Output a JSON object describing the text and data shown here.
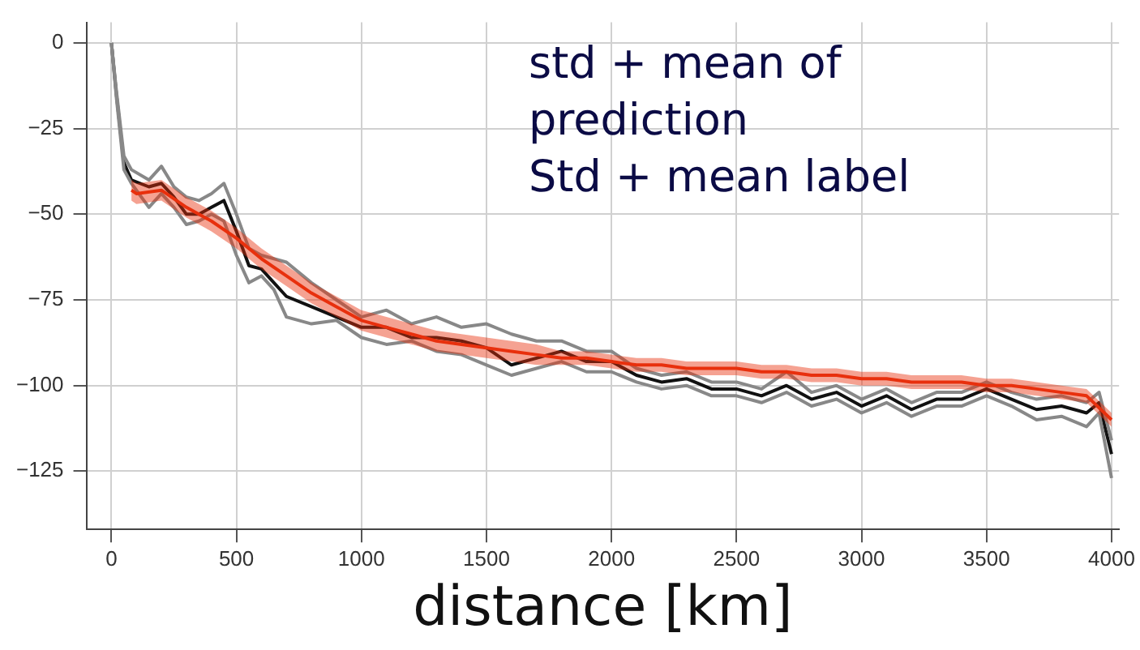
{
  "chart_data": {
    "type": "line",
    "xlabel": "distance [km]",
    "annotations": [
      "std + mean of prediction",
      "Std + mean label"
    ],
    "x": [
      0,
      20,
      50,
      80,
      150,
      200,
      250,
      300,
      350,
      400,
      450,
      500,
      550,
      600,
      650,
      700,
      800,
      900,
      1000,
      1100,
      1200,
      1300,
      1400,
      1500,
      1600,
      1700,
      1800,
      1900,
      2000,
      2100,
      2200,
      2300,
      2400,
      2500,
      2600,
      2700,
      2800,
      2900,
      3000,
      3100,
      3200,
      3300,
      3400,
      3500,
      3600,
      3700,
      3800,
      3900,
      3950,
      4000
    ],
    "series": [
      {
        "color": "#e8300e",
        "x": [
          80,
          100,
          200,
          300,
          400,
          500,
          600,
          700,
          800,
          900,
          1000,
          1100,
          1200,
          1300,
          1400,
          1500,
          1600,
          1700,
          1800,
          1900,
          2000,
          2100,
          2200,
          2300,
          2400,
          2500,
          2600,
          2700,
          2800,
          2900,
          3000,
          3100,
          3200,
          3300,
          3400,
          3500,
          3600,
          3700,
          3800,
          3900,
          4000
        ],
        "values": [
          -43,
          -44,
          -43,
          -48,
          -52,
          -57,
          -63,
          -68,
          -73,
          -77,
          -81,
          -83,
          -85,
          -87,
          -88,
          -89,
          -90,
          -91,
          -92,
          -92,
          -93,
          -94,
          -94,
          -95,
          -95,
          -95,
          -96,
          -96,
          -97,
          -97,
          -98,
          -98,
          -99,
          -99,
          -99,
          -100,
          -100,
          -101,
          -102,
          -103,
          -110
        ],
        "lower": [
          -46,
          -47,
          -46,
          -51,
          -55,
          -60,
          -66,
          -71,
          -76,
          -80,
          -84,
          -86,
          -88,
          -90,
          -91,
          -92,
          -93,
          -94,
          -94,
          -94,
          -95,
          -96,
          -96,
          -97,
          -97,
          -97,
          -98,
          -98,
          -99,
          -99,
          -100,
          -100,
          -101,
          -101,
          -101,
          -102,
          -102,
          -103,
          -104,
          -105,
          -112
        ],
        "upper": [
          -40,
          -41,
          -40,
          -45,
          -49,
          -54,
          -60,
          -65,
          -70,
          -74,
          -78,
          -80,
          -82,
          -84,
          -85,
          -86,
          -87,
          -88,
          -90,
          -90,
          -91,
          -92,
          -92,
          -93,
          -93,
          -93,
          -94,
          -94,
          -95,
          -95,
          -96,
          -96,
          -97,
          -97,
          -97,
          -98,
          -98,
          -99,
          -100,
          -101,
          -108
        ]
      },
      {
        "color": "#888888",
        "values": [
          0,
          -14,
          -33,
          -37,
          -40,
          -36,
          -42,
          -45,
          -46,
          -44,
          -41,
          -50,
          -60,
          -62,
          -63,
          -64,
          -70,
          -75,
          -80,
          -78,
          -82,
          -80,
          -83,
          -82,
          -85,
          -87,
          -87,
          -90,
          -90,
          -95,
          -97,
          -96,
          -99,
          -99,
          -101,
          -96,
          -102,
          -100,
          -104,
          -101,
          -105,
          -102,
          -102,
          -99,
          -102,
          -104,
          -103,
          -105,
          -102,
          -116
        ]
      },
      {
        "color": "#888888",
        "values": [
          0,
          -16,
          -37,
          -41,
          -48,
          -44,
          -48,
          -53,
          -52,
          -50,
          -52,
          -62,
          -70,
          -68,
          -72,
          -80,
          -82,
          -81,
          -86,
          -88,
          -87,
          -90,
          -91,
          -94,
          -97,
          -95,
          -93,
          -96,
          -96,
          -99,
          -101,
          -100,
          -103,
          -103,
          -105,
          -102,
          -106,
          -104,
          -108,
          -105,
          -109,
          -106,
          -106,
          -103,
          -106,
          -110,
          -109,
          -112,
          -108,
          -127
        ]
      },
      {
        "color": "#111111",
        "values": [
          0,
          -15,
          -35,
          -40,
          -42,
          -41,
          -45,
          -50,
          -50,
          -48,
          -46,
          -55,
          -65,
          -66,
          -70,
          -74,
          -77,
          -80,
          -83,
          -83,
          -86,
          -86,
          -87,
          -89,
          -94,
          -92,
          -90,
          -93,
          -93,
          -97,
          -99,
          -98,
          -101,
          -101,
          -103,
          -100,
          -104,
          -102,
          -106,
          -103,
          -107,
          -104,
          -104,
          -101,
          -104,
          -107,
          -106,
          -108,
          -105,
          -120
        ]
      }
    ],
    "xlim": [
      -100,
      4030
    ],
    "xticks": [
      0,
      500,
      1000,
      1500,
      2000,
      2500,
      3000,
      3500,
      4000
    ],
    "ylim": [
      -142,
      6
    ],
    "yticks": [
      0,
      -25,
      -50,
      -75,
      -100,
      -125
    ],
    "grid": true,
    "legend": false,
    "marker": "none",
    "line_style": "solid"
  }
}
